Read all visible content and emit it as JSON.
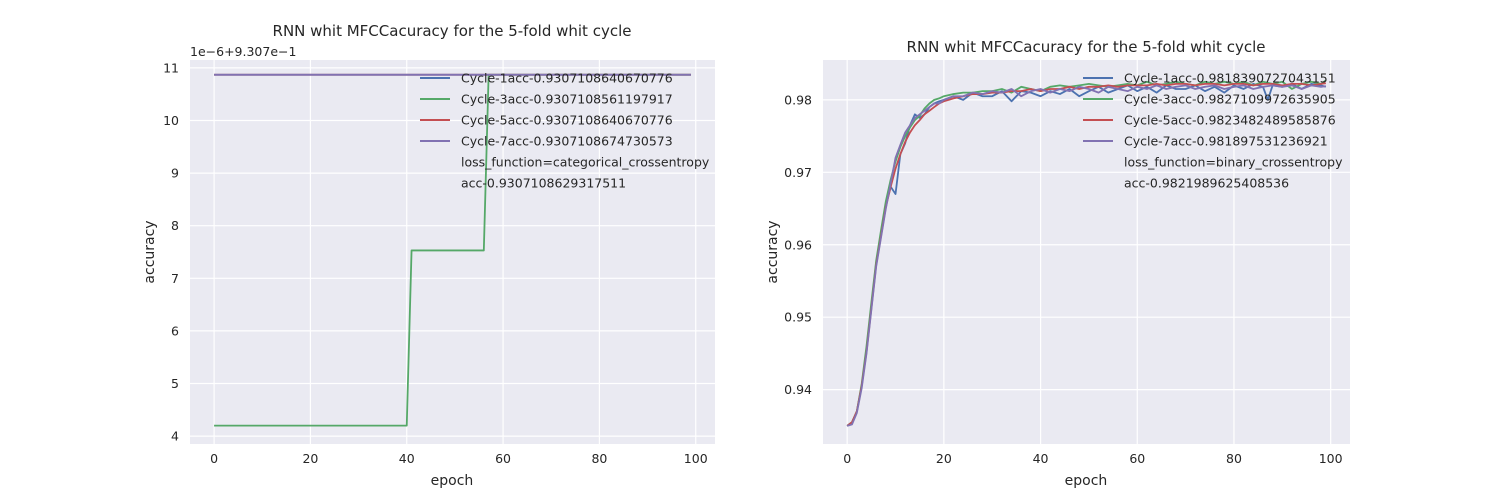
{
  "chart_data": [
    {
      "type": "line",
      "title": "RNN whit MFCCacuracy for the 5-fold whit cycle",
      "xlabel": "epoch",
      "ylabel": "accuracy",
      "offset_text": "1e−6+9.307e−1",
      "xlim": [
        -5,
        104
      ],
      "ylim": [
        3.85,
        11.15
      ],
      "x_ticks": [
        0,
        20,
        40,
        60,
        80,
        100
      ],
      "y_ticks": [
        4,
        5,
        6,
        7,
        8,
        9,
        10,
        11
      ],
      "grid": true,
      "legend_position": "top-right",
      "legend_extra": [
        "loss_function=categorical_crossentropy",
        "acc-0.9307108629317511"
      ],
      "series": [
        {
          "name": "Cycle-1acc-0.9307108640670776",
          "color": "#4C72B0",
          "points": [
            [
              0,
              10.87
            ],
            [
              99,
              10.87
            ]
          ]
        },
        {
          "name": "Cycle-3acc-0.9307108561197917",
          "color": "#55A868",
          "points": [
            [
              0,
              4.2
            ],
            [
              40,
              4.2
            ],
            [
              41,
              7.53
            ],
            [
              56,
              7.53
            ],
            [
              57,
              10.87
            ],
            [
              99,
              10.87
            ]
          ]
        },
        {
          "name": "Cycle-5acc-0.9307108640670776",
          "color": "#C44E52",
          "points": [
            [
              0,
              10.87
            ],
            [
              99,
              10.87
            ]
          ]
        },
        {
          "name": "Cycle-7acc-0.9307108674730573",
          "color": "#8172B2",
          "points": [
            [
              0,
              10.87
            ],
            [
              99,
              10.87
            ]
          ]
        }
      ]
    },
    {
      "type": "line",
      "title": "RNN whit MFCCacuracy for the 5-fold whit cycle",
      "xlabel": "epoch",
      "ylabel": "accuracy",
      "xlim": [
        -5,
        104
      ],
      "ylim": [
        0.9325,
        0.9855
      ],
      "x_ticks": [
        0,
        20,
        40,
        60,
        80,
        100
      ],
      "y_ticks": [
        0.94,
        0.95,
        0.96,
        0.97,
        0.98
      ],
      "grid": true,
      "legend_position": "top-right",
      "legend_extra": [
        "loss_function=binary_crossentropy",
        "acc-0.9821989625408536"
      ],
      "series": [
        {
          "name": "Cycle-1acc-0.9818390727043151",
          "color": "#4C72B0",
          "points": [
            [
              0,
              0.935
            ],
            [
              1,
              0.9355
            ],
            [
              2,
              0.937
            ],
            [
              3,
              0.9405
            ],
            [
              4,
              0.9455
            ],
            [
              5,
              0.9515
            ],
            [
              6,
              0.9575
            ],
            [
              7,
              0.9615
            ],
            [
              8,
              0.9655
            ],
            [
              9,
              0.968
            ],
            [
              10,
              0.967
            ],
            [
              11,
              0.9725
            ],
            [
              12,
              0.974
            ],
            [
              13,
              0.9765
            ],
            [
              14,
              0.978
            ],
            [
              15,
              0.9775
            ],
            [
              16,
              0.978
            ],
            [
              17,
              0.979
            ],
            [
              18,
              0.9795
            ],
            [
              19,
              0.9798
            ],
            [
              20,
              0.98
            ],
            [
              22,
              0.9805
            ],
            [
              24,
              0.98
            ],
            [
              26,
              0.981
            ],
            [
              28,
              0.9805
            ],
            [
              30,
              0.9805
            ],
            [
              32,
              0.9812
            ],
            [
              34,
              0.9798
            ],
            [
              36,
              0.9812
            ],
            [
              38,
              0.981
            ],
            [
              40,
              0.9805
            ],
            [
              42,
              0.9812
            ],
            [
              44,
              0.9808
            ],
            [
              46,
              0.9815
            ],
            [
              48,
              0.9805
            ],
            [
              50,
              0.9812
            ],
            [
              52,
              0.9818
            ],
            [
              54,
              0.981
            ],
            [
              56,
              0.9815
            ],
            [
              58,
              0.982
            ],
            [
              60,
              0.9812
            ],
            [
              62,
              0.9818
            ],
            [
              64,
              0.981
            ],
            [
              66,
              0.982
            ],
            [
              68,
              0.9815
            ],
            [
              70,
              0.9815
            ],
            [
              72,
              0.982
            ],
            [
              74,
              0.9812
            ],
            [
              76,
              0.9818
            ],
            [
              78,
              0.981
            ],
            [
              80,
              0.982
            ],
            [
              82,
              0.9815
            ],
            [
              84,
              0.9822
            ],
            [
              86,
              0.9818
            ],
            [
              87,
              0.98
            ],
            [
              88,
              0.982
            ],
            [
              90,
              0.9818
            ],
            [
              92,
              0.9822
            ],
            [
              94,
              0.9815
            ],
            [
              96,
              0.9822
            ],
            [
              98,
              0.982
            ],
            [
              99,
              0.9818
            ]
          ]
        },
        {
          "name": "Cycle-3acc-0.9827109972635905",
          "color": "#55A868",
          "points": [
            [
              0,
              0.935
            ],
            [
              1,
              0.9355
            ],
            [
              2,
              0.937
            ],
            [
              3,
              0.9408
            ],
            [
              4,
              0.946
            ],
            [
              5,
              0.952
            ],
            [
              6,
              0.9578
            ],
            [
              7,
              0.962
            ],
            [
              8,
              0.966
            ],
            [
              9,
              0.969
            ],
            [
              10,
              0.9715
            ],
            [
              11,
              0.9735
            ],
            [
              12,
              0.975
            ],
            [
              13,
              0.9762
            ],
            [
              14,
              0.9772
            ],
            [
              15,
              0.9778
            ],
            [
              16,
              0.9788
            ],
            [
              17,
              0.9795
            ],
            [
              18,
              0.98
            ],
            [
              19,
              0.9802
            ],
            [
              20,
              0.9805
            ],
            [
              22,
              0.9808
            ],
            [
              24,
              0.981
            ],
            [
              26,
              0.981
            ],
            [
              28,
              0.9812
            ],
            [
              30,
              0.9812
            ],
            [
              32,
              0.9815
            ],
            [
              34,
              0.981
            ],
            [
              36,
              0.9818
            ],
            [
              38,
              0.9815
            ],
            [
              40,
              0.9812
            ],
            [
              42,
              0.9818
            ],
            [
              44,
              0.982
            ],
            [
              46,
              0.9818
            ],
            [
              48,
              0.982
            ],
            [
              50,
              0.9822
            ],
            [
              52,
              0.982
            ],
            [
              54,
              0.9818
            ],
            [
              56,
              0.982
            ],
            [
              58,
              0.9822
            ],
            [
              60,
              0.982
            ],
            [
              62,
              0.9825
            ],
            [
              64,
              0.982
            ],
            [
              66,
              0.9822
            ],
            [
              68,
              0.9825
            ],
            [
              70,
              0.9822
            ],
            [
              72,
              0.982
            ],
            [
              74,
              0.9825
            ],
            [
              76,
              0.9822
            ],
            [
              78,
              0.9825
            ],
            [
              80,
              0.9822
            ],
            [
              82,
              0.9825
            ],
            [
              84,
              0.982
            ],
            [
              86,
              0.9825
            ],
            [
              88,
              0.9822
            ],
            [
              90,
              0.9825
            ],
            [
              92,
              0.9815
            ],
            [
              94,
              0.9822
            ],
            [
              96,
              0.9825
            ],
            [
              98,
              0.9822
            ],
            [
              99,
              0.9827
            ]
          ]
        },
        {
          "name": "Cycle-5acc-0.9823482489585876",
          "color": "#C44E52",
          "points": [
            [
              0,
              0.935
            ],
            [
              1,
              0.9355
            ],
            [
              2,
              0.937
            ],
            [
              3,
              0.9405
            ],
            [
              4,
              0.9452
            ],
            [
              5,
              0.9512
            ],
            [
              6,
              0.9572
            ],
            [
              7,
              0.9612
            ],
            [
              8,
              0.9652
            ],
            [
              9,
              0.968
            ],
            [
              10,
              0.9705
            ],
            [
              11,
              0.9725
            ],
            [
              12,
              0.9742
            ],
            [
              13,
              0.9755
            ],
            [
              14,
              0.9765
            ],
            [
              15,
              0.9772
            ],
            [
              16,
              0.978
            ],
            [
              17,
              0.9785
            ],
            [
              18,
              0.979
            ],
            [
              19,
              0.9795
            ],
            [
              20,
              0.9798
            ],
            [
              22,
              0.9802
            ],
            [
              24,
              0.9805
            ],
            [
              26,
              0.9808
            ],
            [
              28,
              0.9808
            ],
            [
              30,
              0.981
            ],
            [
              32,
              0.981
            ],
            [
              34,
              0.9812
            ],
            [
              36,
              0.9812
            ],
            [
              38,
              0.9815
            ],
            [
              40,
              0.9812
            ],
            [
              42,
              0.9815
            ],
            [
              44,
              0.9815
            ],
            [
              46,
              0.9818
            ],
            [
              48,
              0.9815
            ],
            [
              50,
              0.9818
            ],
            [
              52,
              0.9818
            ],
            [
              54,
              0.982
            ],
            [
              56,
              0.9818
            ],
            [
              58,
              0.982
            ],
            [
              60,
              0.982
            ],
            [
              62,
              0.982
            ],
            [
              64,
              0.9822
            ],
            [
              66,
              0.982
            ],
            [
              68,
              0.9822
            ],
            [
              70,
              0.9822
            ],
            [
              72,
              0.982
            ],
            [
              74,
              0.9822
            ],
            [
              76,
              0.9822
            ],
            [
              78,
              0.982
            ],
            [
              80,
              0.9822
            ],
            [
              82,
              0.9822
            ],
            [
              84,
              0.982
            ],
            [
              86,
              0.9822
            ],
            [
              88,
              0.9822
            ],
            [
              90,
              0.982
            ],
            [
              92,
              0.9822
            ],
            [
              94,
              0.9822
            ],
            [
              96,
              0.982
            ],
            [
              98,
              0.9822
            ],
            [
              99,
              0.9823
            ]
          ]
        },
        {
          "name": "Cycle-7acc-0.981897531236921",
          "color": "#8172B2",
          "points": [
            [
              0,
              0.935
            ],
            [
              1,
              0.9352
            ],
            [
              2,
              0.9368
            ],
            [
              3,
              0.9402
            ],
            [
              4,
              0.945
            ],
            [
              5,
              0.951
            ],
            [
              6,
              0.957
            ],
            [
              7,
              0.961
            ],
            [
              8,
              0.965
            ],
            [
              9,
              0.9685
            ],
            [
              10,
              0.972
            ],
            [
              11,
              0.9738
            ],
            [
              12,
              0.9755
            ],
            [
              13,
              0.9765
            ],
            [
              14,
              0.9775
            ],
            [
              15,
              0.978
            ],
            [
              16,
              0.9785
            ],
            [
              17,
              0.979
            ],
            [
              18,
              0.9795
            ],
            [
              19,
              0.9795
            ],
            [
              20,
              0.98
            ],
            [
              22,
              0.9805
            ],
            [
              24,
              0.9805
            ],
            [
              26,
              0.981
            ],
            [
              28,
              0.9808
            ],
            [
              30,
              0.9812
            ],
            [
              32,
              0.981
            ],
            [
              34,
              0.9815
            ],
            [
              36,
              0.9805
            ],
            [
              38,
              0.9812
            ],
            [
              40,
              0.9815
            ],
            [
              42,
              0.981
            ],
            [
              44,
              0.9815
            ],
            [
              46,
              0.9812
            ],
            [
              48,
              0.9818
            ],
            [
              50,
              0.9815
            ],
            [
              52,
              0.981
            ],
            [
              54,
              0.9818
            ],
            [
              56,
              0.9815
            ],
            [
              58,
              0.9812
            ],
            [
              60,
              0.9818
            ],
            [
              62,
              0.9815
            ],
            [
              64,
              0.982
            ],
            [
              66,
              0.9815
            ],
            [
              68,
              0.9818
            ],
            [
              70,
              0.982
            ],
            [
              72,
              0.9815
            ],
            [
              74,
              0.9818
            ],
            [
              76,
              0.982
            ],
            [
              78,
              0.9815
            ],
            [
              80,
              0.9818
            ],
            [
              82,
              0.982
            ],
            [
              84,
              0.9815
            ],
            [
              86,
              0.9818
            ],
            [
              88,
              0.982
            ],
            [
              90,
              0.9818
            ],
            [
              92,
              0.982
            ],
            [
              94,
              0.9815
            ],
            [
              96,
              0.982
            ],
            [
              98,
              0.9818
            ],
            [
              99,
              0.9819
            ]
          ]
        }
      ]
    }
  ]
}
